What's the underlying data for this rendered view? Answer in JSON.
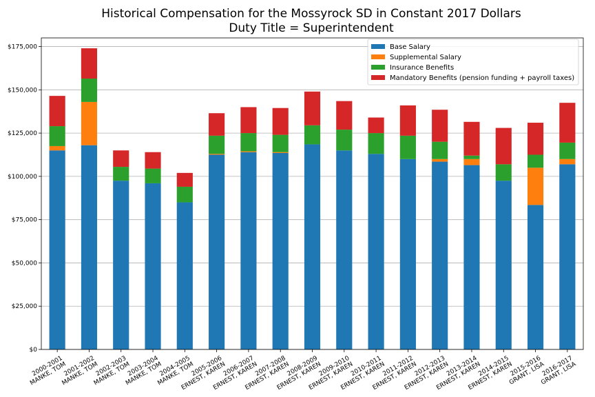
{
  "chart_data": {
    "type": "bar",
    "stacked": true,
    "title": "Historical Compensation for the Mossyrock SD in Constant 2017 Dollars",
    "subtitle": "Duty Title = Superintendent",
    "xlabel": "",
    "ylabel": "",
    "ylim": [
      0,
      180000
    ],
    "yticks": [
      0,
      25000,
      50000,
      75000,
      100000,
      125000,
      150000,
      175000
    ],
    "ytick_labels": [
      "$0",
      "$25,000",
      "$50,000",
      "$75,000",
      "$100,000",
      "$125,000",
      "$150,000",
      "$175,000"
    ],
    "grid": "horizontal",
    "legend_position": "top-right",
    "categories": [
      "2000-2001 MANKE, TOM",
      "2001-2002 MANKE, TOM",
      "2002-2003 MANKE, TOM",
      "2003-2004 MANKE, TOM",
      "2004-2005 MANKE, TOM",
      "2005-2006 ERNEST, KAREN",
      "2006-2007 ERNEST, KAREN",
      "2007-2008 ERNEST, KAREN",
      "2008-2009 ERNEST, KAREN",
      "2009-2010 ERNEST, KAREN",
      "2010-2011 ERNEST, KAREN",
      "2011-2012 ERNEST, KAREN",
      "2012-2013 ERNEST, KAREN",
      "2013-2014 ERNEST, KAREN",
      "2014-2015 ERNEST, KAREN",
      "2015-2016 GRANT, LISA",
      "2016-2017 GRANT, LISA"
    ],
    "category_lines": [
      [
        "2000-2001",
        "MANKE, TOM"
      ],
      [
        "2001-2002",
        "MANKE, TOM"
      ],
      [
        "2002-2003",
        "MANKE, TOM"
      ],
      [
        "2003-2004",
        "MANKE, TOM"
      ],
      [
        "2004-2005",
        "MANKE, TOM"
      ],
      [
        "2005-2006",
        "ERNEST, KAREN"
      ],
      [
        "2006-2007",
        "ERNEST, KAREN"
      ],
      [
        "2007-2008",
        "ERNEST, KAREN"
      ],
      [
        "2008-2009",
        "ERNEST, KAREN"
      ],
      [
        "2009-2010",
        "ERNEST, KAREN"
      ],
      [
        "2010-2011",
        "ERNEST, KAREN"
      ],
      [
        "2011-2012",
        "ERNEST, KAREN"
      ],
      [
        "2012-2013",
        "ERNEST, KAREN"
      ],
      [
        "2013-2014",
        "ERNEST, KAREN"
      ],
      [
        "2014-2015",
        "ERNEST, KAREN"
      ],
      [
        "2015-2016",
        "GRANT, LISA"
      ],
      [
        "2016-2017",
        "GRANT, LISA"
      ]
    ],
    "series": [
      {
        "name": "Base Salary",
        "color": "#1f77b4",
        "values": [
          115000,
          118000,
          97500,
          96000,
          85000,
          112500,
          114000,
          113500,
          118500,
          115000,
          113000,
          110000,
          108500,
          106500,
          97500,
          83500,
          107000
        ]
      },
      {
        "name": "Supplemental Salary",
        "color": "#ff7f0e",
        "values": [
          2500,
          25000,
          0,
          0,
          0,
          500,
          500,
          500,
          0,
          0,
          0,
          0,
          1500,
          3500,
          0,
          21500,
          3000
        ]
      },
      {
        "name": "Insurance Benefits",
        "color": "#2ca02c",
        "values": [
          11500,
          13500,
          8000,
          8500,
          9000,
          10500,
          10500,
          10000,
          11000,
          12000,
          12000,
          13500,
          10000,
          2000,
          9500,
          7500,
          9500
        ]
      },
      {
        "name": "Mandatory Benefits (pension funding + payroll taxes)",
        "color": "#d62728",
        "values": [
          17500,
          17500,
          9500,
          9500,
          8000,
          13000,
          15000,
          15500,
          19500,
          16500,
          9000,
          17500,
          18500,
          19500,
          21000,
          18500,
          23000
        ]
      }
    ]
  }
}
